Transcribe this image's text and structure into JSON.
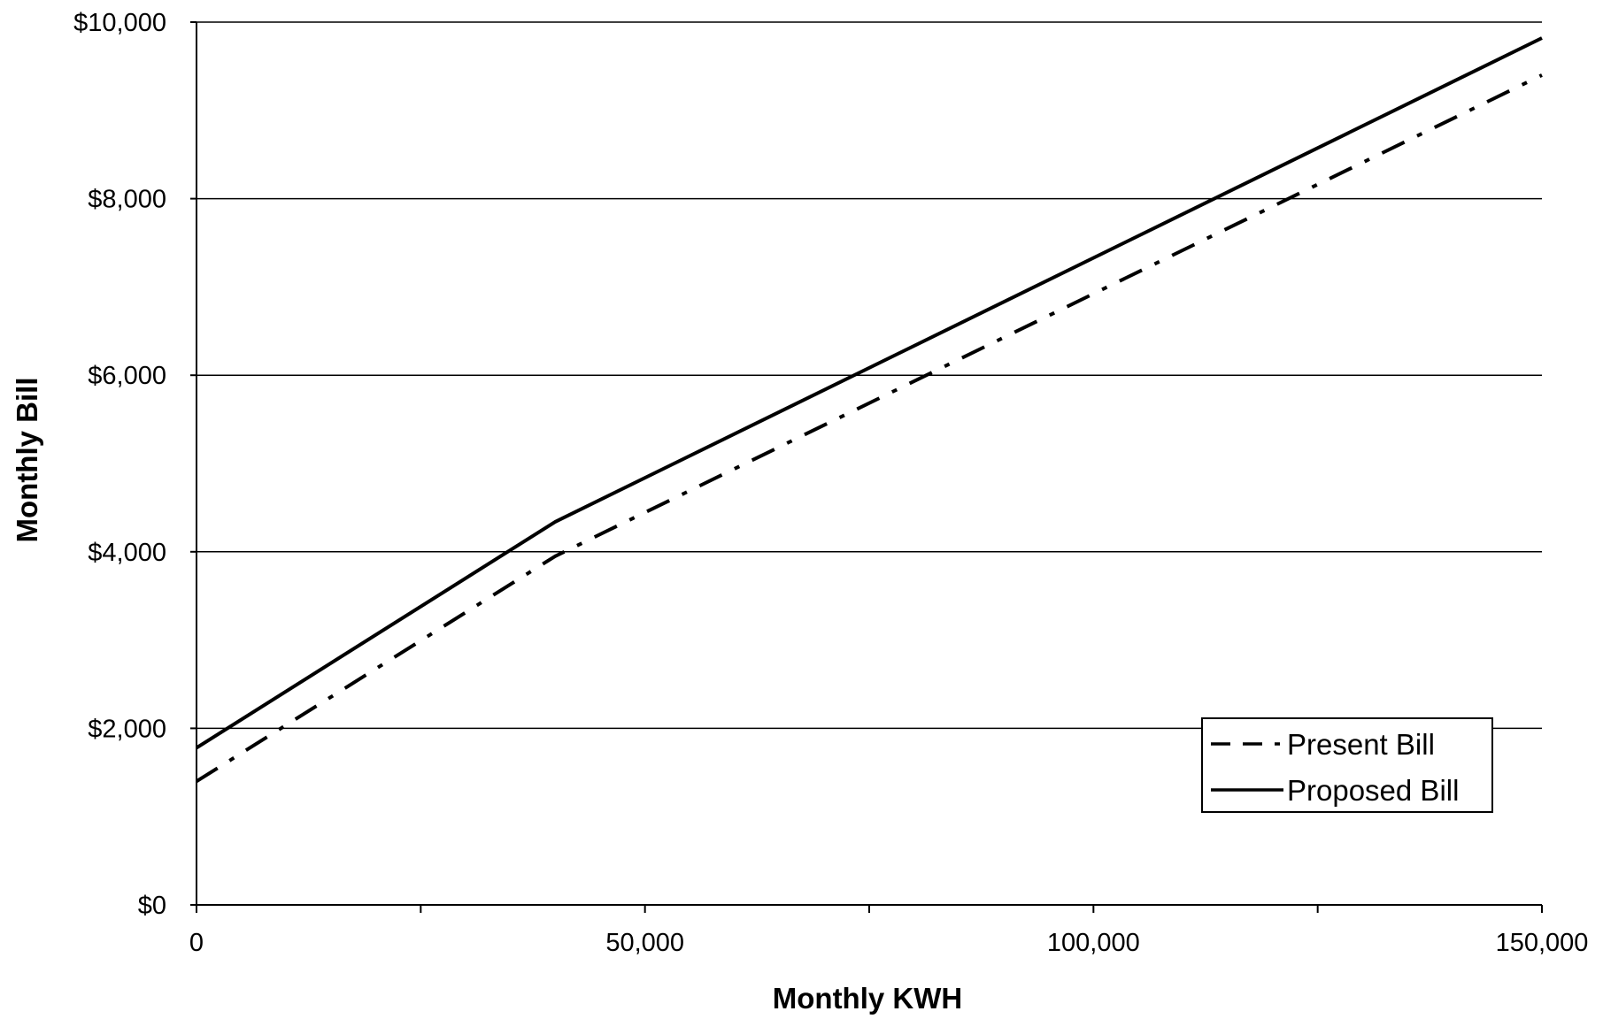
{
  "chart_data": {
    "type": "line",
    "title": "",
    "xlabel": "Monthly KWH",
    "ylabel": "Monthly Bill",
    "xlim": [
      0,
      150000
    ],
    "ylim": [
      0,
      10000
    ],
    "x_ticks": [
      0,
      50000,
      100000,
      150000
    ],
    "x_tick_labels": [
      "0",
      "50,000",
      "100,000",
      "150,000"
    ],
    "y_ticks": [
      0,
      2000,
      4000,
      6000,
      8000,
      10000
    ],
    "y_tick_labels": [
      "$0",
      "$2,000",
      "$4,000",
      "$6,000",
      "$8,000",
      "$10,000"
    ],
    "grid": "horizontal",
    "legend_position": "lower-right",
    "series": [
      {
        "name": "Present Bill",
        "line_style": "dash-dot",
        "color": "#000000",
        "x": [
          0,
          40000,
          150000
        ],
        "y": [
          1400,
          3950,
          9400
        ]
      },
      {
        "name": "Proposed Bill",
        "line_style": "solid",
        "color": "#000000",
        "x": [
          0,
          40000,
          150000
        ],
        "y": [
          1780,
          4340,
          9820
        ]
      }
    ]
  }
}
